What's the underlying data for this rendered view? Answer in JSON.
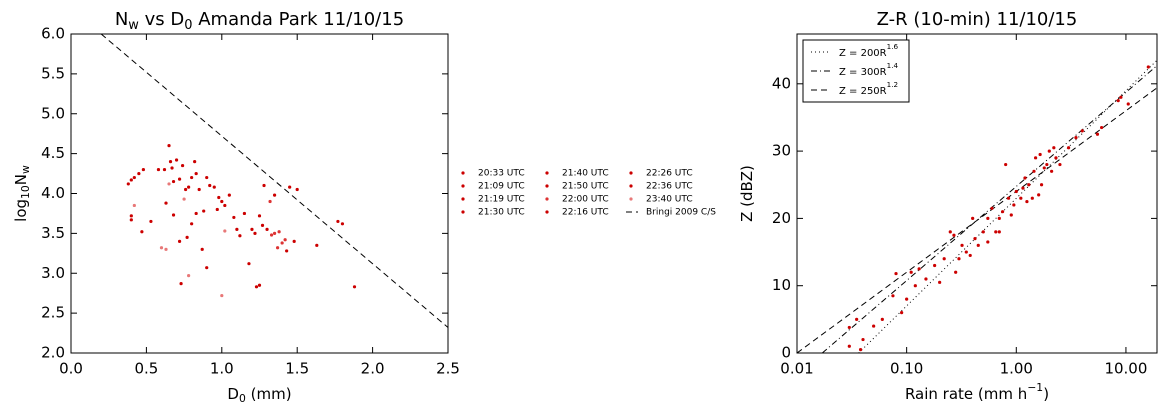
{
  "chart_data": [
    {
      "type": "scatter",
      "title": [
        {
          "text": "N"
        },
        {
          "text": "w",
          "sub": true
        },
        {
          "text": " vs D"
        },
        {
          "text": "0",
          "sub": true
        },
        {
          "text": " Amanda Park 11/10/15"
        }
      ],
      "x_label": [
        {
          "text": "D"
        },
        {
          "text": "0",
          "sub": true
        },
        {
          "text": " (mm)"
        }
      ],
      "y_label": [
        {
          "text": "log"
        },
        {
          "text": "10",
          "sub": true
        },
        {
          "text": "N"
        },
        {
          "text": "w",
          "sub": true
        }
      ],
      "xlim": [
        0,
        2.5
      ],
      "xticks": [
        {
          "value": 0,
          "label": "0.0"
        },
        0.5,
        {
          "value": 1,
          "label": "1.0"
        },
        1.5,
        {
          "value": 2,
          "label": "2.0"
        },
        2.5
      ],
      "ylim": [
        2,
        6
      ],
      "yticks": [
        {
          "value": 2,
          "label": "2.0"
        },
        2.5,
        {
          "value": 3,
          "label": "3.0"
        },
        3.5,
        {
          "value": 4,
          "label": "4.0"
        },
        4.5,
        {
          "value": 5,
          "label": "5.0"
        },
        5.5,
        {
          "value": 6,
          "label": "6.0"
        }
      ],
      "legend": "outside right",
      "series": [
        {
          "name": "20:33 UTC",
          "color": "#cc0000",
          "x": [
            0.38,
            0.4,
            0.42,
            0.4,
            0.4,
            0.45,
            0.47
          ],
          "values": [
            4.12,
            4.17,
            4.2,
            3.72,
            3.67,
            4.25,
            3.52
          ]
        },
        {
          "name": "21:09 UTC",
          "color": "#cc0000",
          "x": [
            0.48,
            0.53,
            0.58,
            0.62,
            0.65,
            0.66,
            0.67
          ],
          "values": [
            4.3,
            3.65,
            4.3,
            4.3,
            4.6,
            4.4,
            4.32
          ]
        },
        {
          "name": "21:19 UTC",
          "color": "#cc0000",
          "x": [
            0.68,
            0.7,
            0.72,
            0.74,
            0.76,
            0.78,
            0.8
          ],
          "values": [
            4.15,
            4.42,
            4.18,
            4.35,
            4.05,
            4.08,
            4.2
          ]
        },
        {
          "name": "21:30 UTC",
          "color": "#cc0000",
          "x": [
            0.82,
            0.83,
            0.85,
            0.88,
            0.9,
            0.92,
            0.95
          ],
          "values": [
            4.4,
            4.25,
            4.05,
            3.78,
            4.2,
            4.1,
            4.08
          ]
        },
        {
          "name": "21:40 UTC",
          "color": "#cc0000",
          "x": [
            0.98,
            1.0,
            1.02,
            1.05,
            1.08,
            1.12,
            1.15
          ],
          "values": [
            3.95,
            3.9,
            3.85,
            3.98,
            3.7,
            3.47,
            3.75
          ]
        },
        {
          "name": "21:50 UTC",
          "color": "#cc0000",
          "x": [
            1.18,
            1.2,
            1.22,
            1.25,
            1.27,
            1.28,
            1.3
          ],
          "values": [
            3.12,
            3.55,
            3.5,
            3.72,
            3.6,
            4.1,
            3.55
          ]
        },
        {
          "name": "22:00 UTC",
          "color": "#dd3333",
          "x": [
            1.32,
            1.33,
            1.35,
            1.37,
            1.38,
            1.4,
            1.42
          ],
          "values": [
            3.9,
            3.48,
            3.5,
            3.32,
            3.52,
            3.38,
            3.42
          ]
        },
        {
          "name": "22:16 UTC",
          "color": "#cc0000",
          "x": [
            1.43,
            1.45,
            1.48,
            1.5,
            1.63,
            1.77,
            1.8,
            1.88
          ],
          "values": [
            3.28,
            4.08,
            3.4,
            4.05,
            3.35,
            3.65,
            3.62,
            2.83
          ]
        },
        {
          "name": "22:26 UTC",
          "color": "#cc0000",
          "x": [
            1.25,
            1.23,
            0.73,
            0.72,
            0.77,
            0.83,
            0.87,
            0.9
          ],
          "values": [
            2.85,
            2.83,
            2.87,
            3.4,
            3.45,
            3.75,
            3.3,
            3.07
          ]
        },
        {
          "name": "22:36 UTC",
          "color": "#cc0000",
          "x": [
            0.63,
            0.68,
            0.8,
            0.97,
            1.1,
            1.35
          ],
          "values": [
            3.88,
            3.73,
            3.62,
            3.8,
            3.55,
            3.98
          ]
        },
        {
          "name": "23:40 UTC",
          "color": "#e87878",
          "x": [
            0.63,
            0.42,
            0.78,
            1.0,
            1.02,
            0.75,
            0.65,
            0.6
          ],
          "values": [
            3.3,
            3.85,
            2.97,
            2.72,
            3.53,
            3.93,
            4.12,
            3.32
          ]
        },
        {
          "name": "Bringi 2009 C/S",
          "kind": "line",
          "dash": "dashed",
          "color": "#000000",
          "x": [
            0.2,
            2.5
          ],
          "values": [
            6.0,
            2.32
          ]
        }
      ]
    },
    {
      "type": "scatter",
      "title": [
        {
          "text": "Z-R (10-min) 11/10/15"
        }
      ],
      "x_label": [
        {
          "text": "Rain rate (mm h"
        },
        {
          "text": "−1",
          "sup": true
        },
        {
          "text": ")"
        }
      ],
      "y_label": [
        {
          "text": "Z (dBZ)"
        }
      ],
      "xscale": "log",
      "xlim": [
        0.01,
        19.2
      ],
      "xticks": [
        0.01,
        {
          "value": 0.1,
          "label": "0.10"
        },
        {
          "value": 1,
          "label": "1.00"
        },
        {
          "value": 10,
          "label": "10.00"
        }
      ],
      "ylim": [
        0,
        47.4
      ],
      "yticks": [
        0,
        10,
        20,
        30,
        40
      ],
      "legend": "upper left",
      "series": [
        {
          "name": [
            {
              "text": "Z = 200R"
            },
            {
              "text": "1.6",
              "sup": true
            }
          ],
          "kind": "line",
          "dash": "dotted",
          "color": "#000000",
          "x": [
            0.0365,
            19.2
          ],
          "values": [
            0,
            43.5
          ]
        },
        {
          "name": [
            {
              "text": "Z = 300R"
            },
            {
              "text": "1.4",
              "sup": true
            }
          ],
          "kind": "line",
          "dash": "dashdot",
          "color": "#000000",
          "x": [
            0.017,
            19.2
          ],
          "values": [
            0,
            42.7
          ]
        },
        {
          "name": [
            {
              "text": "Z = 250R"
            },
            {
              "text": "1.2",
              "sup": true
            }
          ],
          "kind": "line",
          "dash": "dashed",
          "color": "#000000",
          "x": [
            0.01,
            19.2
          ],
          "values": [
            0,
            39.4
          ]
        },
        {
          "color": "#cc0000",
          "x": [
            0.03,
            0.035,
            0.038,
            0.04,
            0.05,
            0.06,
            0.08,
            0.09,
            0.1,
            0.11,
            0.12,
            0.15,
            0.2,
            0.22,
            0.25,
            0.27,
            0.28,
            0.3,
            0.32,
            0.35,
            0.38,
            0.4,
            0.42,
            0.45,
            0.5,
            0.55,
            0.6,
            0.65,
            0.7,
            0.75,
            0.8,
            0.85,
            0.9,
            0.95,
            1.0,
            1.1,
            1.2,
            1.25,
            1.3,
            1.4,
            1.5,
            1.6,
            1.7,
            1.8,
            1.9,
            2.0,
            2.1,
            2.3,
            2.5,
            3.0,
            3.5,
            4.0,
            5.5,
            6.0,
            8.5,
            9.0,
            10.5,
            16.0,
            0.03,
            0.18,
            0.55,
            1.45,
            1.65,
            0.13,
            0.7,
            1.15,
            2.2,
            0.075
          ],
          "values": [
            3.8,
            5,
            0.5,
            2,
            4,
            5,
            11.8,
            6,
            8,
            12,
            10,
            11,
            10.5,
            14,
            18,
            17.5,
            12,
            14,
            16,
            15,
            14.5,
            20,
            17,
            16,
            18,
            16.5,
            21.5,
            18,
            18,
            21,
            28,
            23,
            20.5,
            22,
            24,
            23,
            26,
            22.5,
            25,
            23,
            29,
            23.5,
            25,
            27.5,
            28,
            30,
            27,
            29,
            28,
            30.5,
            32,
            33,
            32.5,
            33.5,
            37.5,
            38,
            37,
            42.5,
            1.0,
            13,
            20,
            27,
            29.5,
            12.5,
            20,
            24.5,
            30.5,
            8.5
          ]
        }
      ]
    }
  ]
}
